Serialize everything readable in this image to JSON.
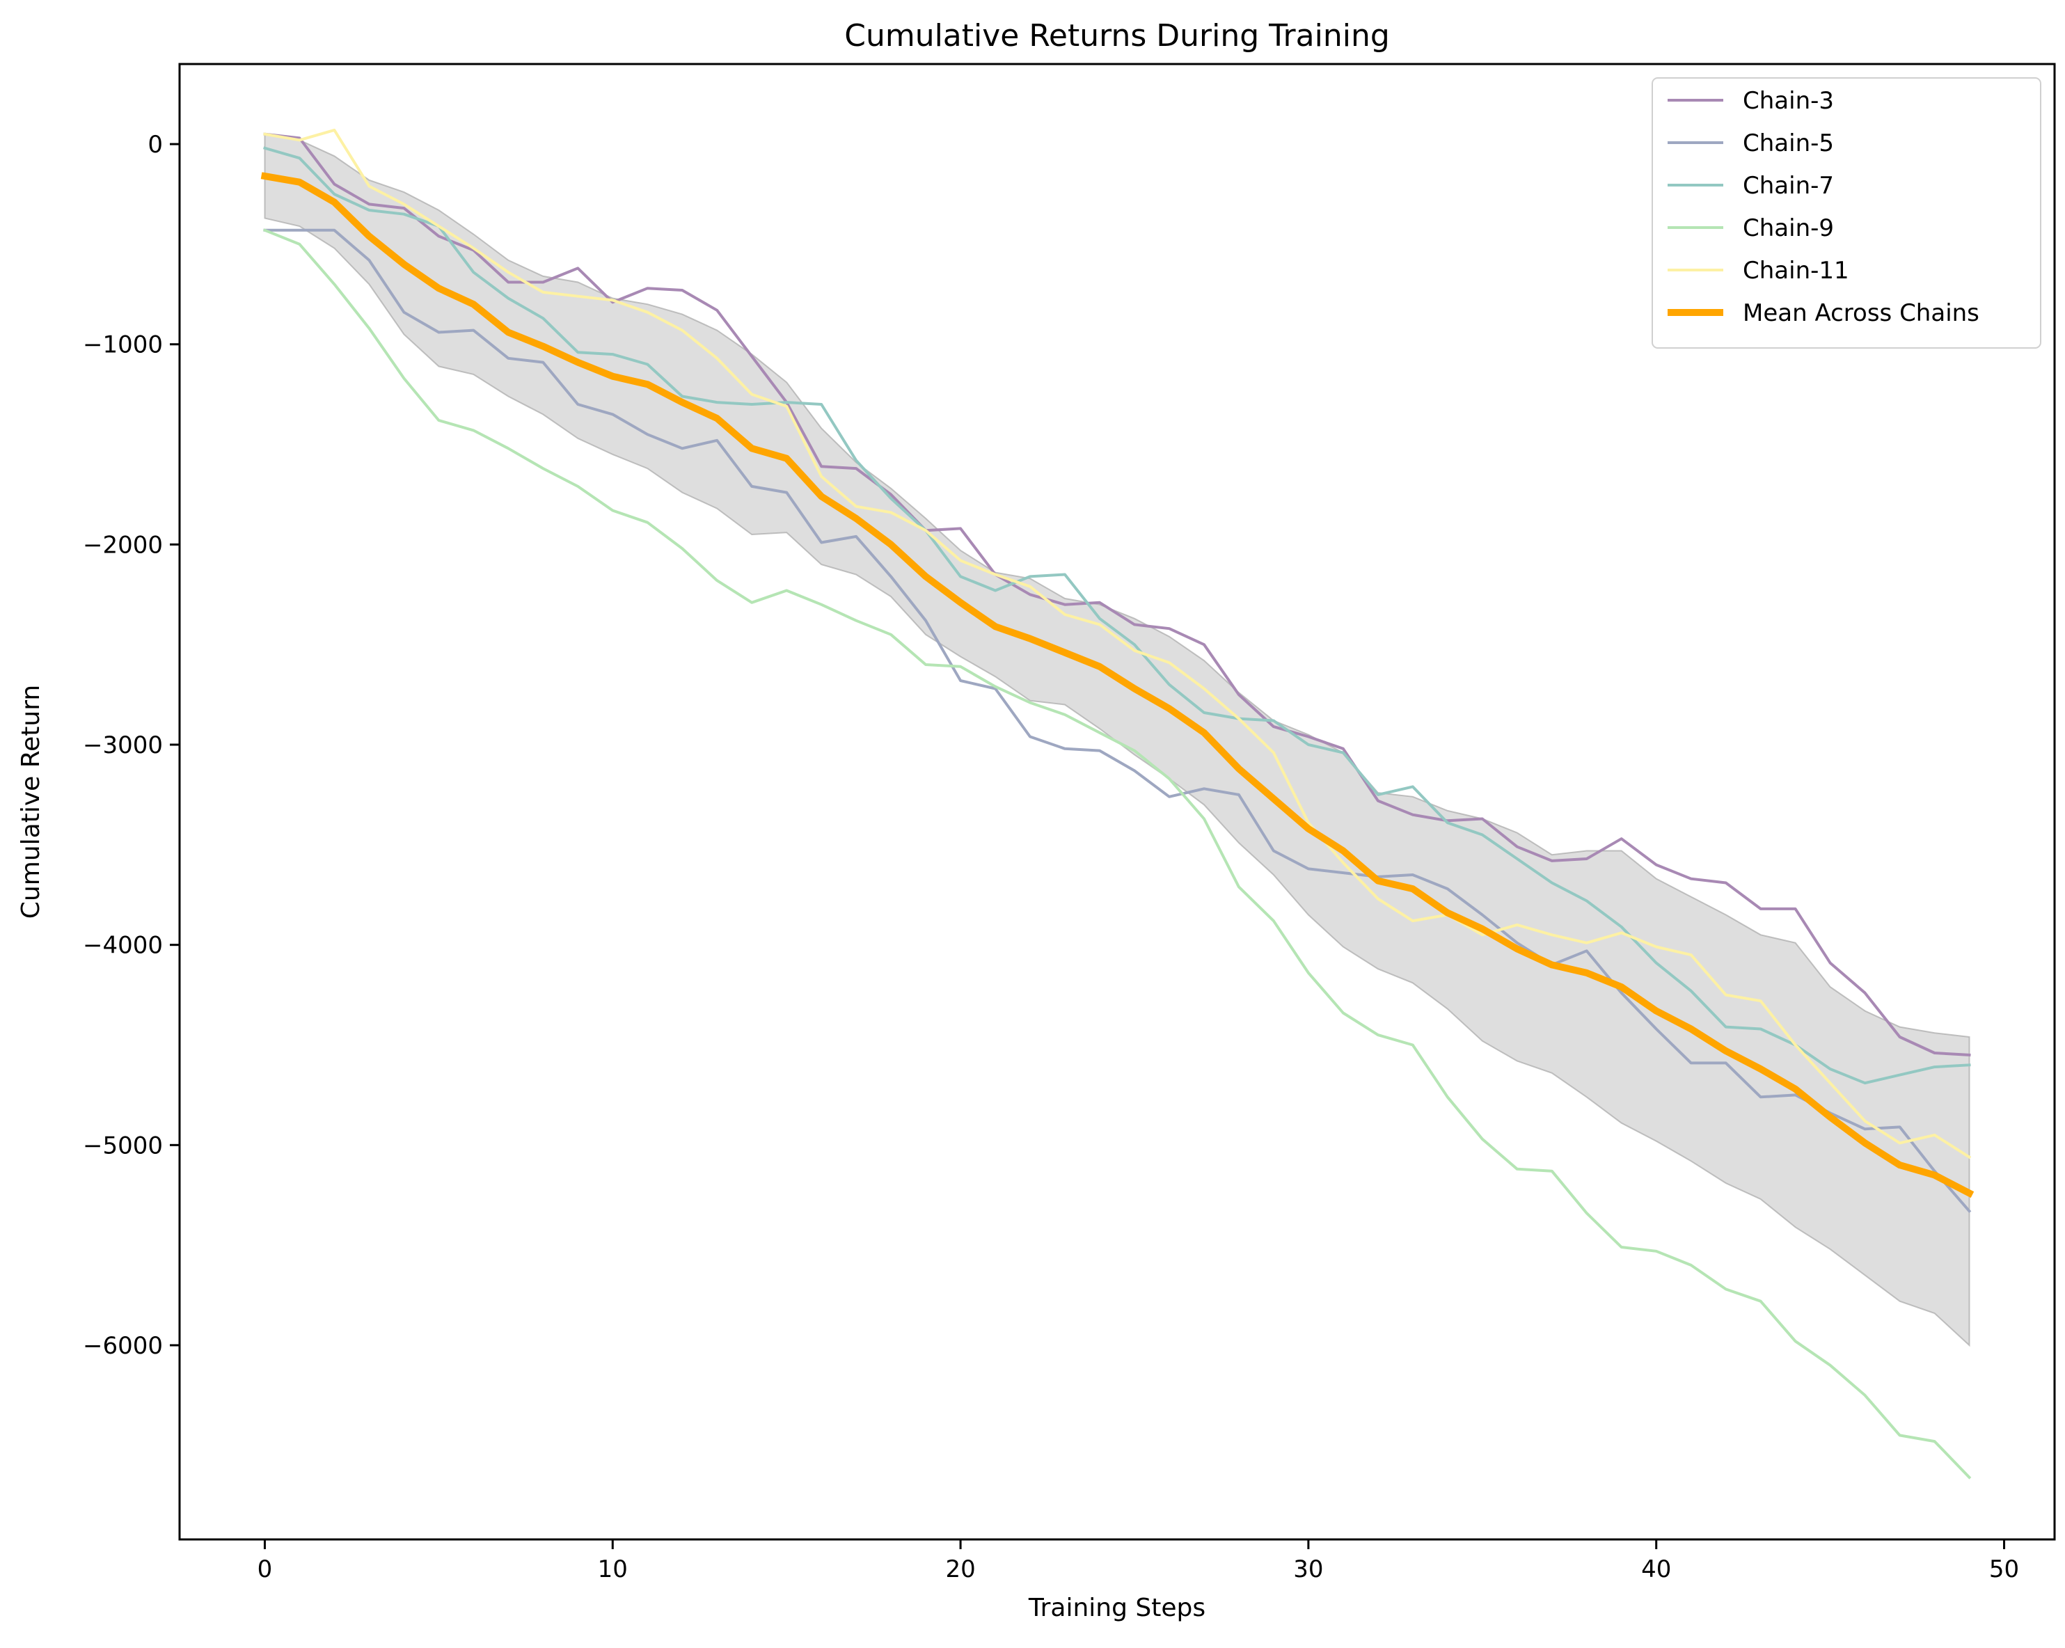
{
  "chart_data": {
    "type": "line",
    "title": "Cumulative Returns During Training",
    "xlabel": "Training Steps",
    "ylabel": "Cumulative Return",
    "xlim": [
      -2.45,
      51.45
    ],
    "ylim": [
      -6970,
      400
    ],
    "xticks": [
      0,
      10,
      20,
      30,
      40,
      50
    ],
    "yticks": [
      0,
      -1000,
      -2000,
      -3000,
      -4000,
      -5000,
      -6000
    ],
    "xtick_labels": [
      "0",
      "10",
      "20",
      "30",
      "40",
      "50"
    ],
    "ytick_labels": [
      "0",
      "−1000",
      "−2000",
      "−3000",
      "−4000",
      "−5000",
      "−6000"
    ],
    "grid": false,
    "legend_position": "top-right",
    "x": [
      0,
      1,
      2,
      3,
      4,
      5,
      6,
      7,
      8,
      9,
      10,
      11,
      12,
      13,
      14,
      15,
      16,
      17,
      18,
      19,
      20,
      21,
      22,
      23,
      24,
      25,
      26,
      27,
      28,
      29,
      30,
      31,
      32,
      33,
      34,
      35,
      36,
      37,
      38,
      39,
      40,
      41,
      42,
      43,
      44,
      45,
      46,
      47,
      48,
      49
    ],
    "series": [
      {
        "name": "Chain-3",
        "color": "#a889b4",
        "linewidth": 4,
        "values": [
          50,
          30,
          -200,
          -300,
          -320,
          -460,
          -530,
          -690,
          -690,
          -620,
          -790,
          -720,
          -730,
          -830,
          -1060,
          -1290,
          -1610,
          -1620,
          -1750,
          -1930,
          -1920,
          -2150,
          -2250,
          -2300,
          -2290,
          -2400,
          -2420,
          -2500,
          -2750,
          -2910,
          -2960,
          -3020,
          -3280,
          -3350,
          -3380,
          -3370,
          -3510,
          -3580,
          -3570,
          -3470,
          -3600,
          -3670,
          -3690,
          -3820,
          -3820,
          -4090,
          -4240,
          -4460,
          -4540,
          -4550
        ]
      },
      {
        "name": "Chain-5",
        "color": "#9ea7c1",
        "linewidth": 4,
        "values": [
          -430,
          -430,
          -430,
          -580,
          -840,
          -940,
          -930,
          -1070,
          -1090,
          -1300,
          -1350,
          -1450,
          -1520,
          -1480,
          -1710,
          -1740,
          -1990,
          -1960,
          -2160,
          -2380,
          -2680,
          -2720,
          -2960,
          -3020,
          -3030,
          -3130,
          -3260,
          -3220,
          -3250,
          -3530,
          -3620,
          -3640,
          -3660,
          -3650,
          -3720,
          -3850,
          -3990,
          -4100,
          -4030,
          -4240,
          -4420,
          -4590,
          -4590,
          -4760,
          -4750,
          -4840,
          -4920,
          -4910,
          -5130,
          -5330
        ]
      },
      {
        "name": "Chain-7",
        "color": "#93c8c2",
        "linewidth": 4,
        "values": [
          -20,
          -70,
          -250,
          -330,
          -350,
          -410,
          -640,
          -770,
          -870,
          -1040,
          -1050,
          -1100,
          -1260,
          -1290,
          -1300,
          -1290,
          -1300,
          -1580,
          -1770,
          -1930,
          -2160,
          -2230,
          -2160,
          -2150,
          -2370,
          -2500,
          -2700,
          -2840,
          -2870,
          -2880,
          -3000,
          -3040,
          -3250,
          -3210,
          -3390,
          -3450,
          -3570,
          -3690,
          -3780,
          -3910,
          -4090,
          -4230,
          -4410,
          -4420,
          -4500,
          -4620,
          -4690,
          -4650,
          -4610,
          -4600
        ]
      },
      {
        "name": "Chain-9",
        "color": "#b5e5b4",
        "linewidth": 4,
        "values": [
          -430,
          -500,
          -700,
          -920,
          -1170,
          -1380,
          -1430,
          -1520,
          -1620,
          -1710,
          -1830,
          -1890,
          -2020,
          -2180,
          -2290,
          -2230,
          -2300,
          -2380,
          -2450,
          -2600,
          -2610,
          -2710,
          -2790,
          -2850,
          -2940,
          -3030,
          -3170,
          -3370,
          -3710,
          -3880,
          -4140,
          -4340,
          -4450,
          -4500,
          -4760,
          -4970,
          -5120,
          -5130,
          -5340,
          -5510,
          -5530,
          -5600,
          -5720,
          -5780,
          -5980,
          -6100,
          -6250,
          -6450,
          -6480,
          -6660
        ]
      },
      {
        "name": "Chain-11",
        "color": "#fdf1a4",
        "linewidth": 4,
        "values": [
          50,
          20,
          70,
          -210,
          -300,
          -410,
          -520,
          -640,
          -740,
          -760,
          -780,
          -840,
          -930,
          -1070,
          -1250,
          -1310,
          -1660,
          -1810,
          -1840,
          -1930,
          -2080,
          -2150,
          -2210,
          -2350,
          -2400,
          -2530,
          -2590,
          -2720,
          -2870,
          -3040,
          -3390,
          -3590,
          -3770,
          -3880,
          -3850,
          -3950,
          -3900,
          -3950,
          -3990,
          -3940,
          -4010,
          -4050,
          -4250,
          -4280,
          -4500,
          -4690,
          -4880,
          -4990,
          -4950,
          -5060
        ]
      },
      {
        "name": "Mean Across Chains",
        "color": "#ffa500",
        "linewidth": 10,
        "values": [
          -160,
          -190,
          -290,
          -460,
          -600,
          -720,
          -800,
          -940,
          -1010,
          -1090,
          -1160,
          -1200,
          -1290,
          -1370,
          -1520,
          -1570,
          -1760,
          -1870,
          -2000,
          -2160,
          -2290,
          -2410,
          -2470,
          -2540,
          -2610,
          -2720,
          -2820,
          -2940,
          -3120,
          -3270,
          -3420,
          -3530,
          -3680,
          -3720,
          -3840,
          -3920,
          -4020,
          -4100,
          -4140,
          -4210,
          -4330,
          -4420,
          -4530,
          -4620,
          -4720,
          -4860,
          -4990,
          -5100,
          -5150,
          -5240
        ]
      }
    ],
    "band": {
      "color": "#c8c8c8",
      "opacity": 0.6,
      "upper": [
        50,
        20,
        -60,
        -180,
        -240,
        -330,
        -450,
        -580,
        -660,
        -690,
        -770,
        -800,
        -850,
        -930,
        -1050,
        -1190,
        -1420,
        -1590,
        -1720,
        -1870,
        -2030,
        -2140,
        -2170,
        -2270,
        -2300,
        -2370,
        -2460,
        -2580,
        -2740,
        -2880,
        -2950,
        -3040,
        -3240,
        -3260,
        -3330,
        -3370,
        -3440,
        -3550,
        -3530,
        -3530,
        -3670,
        -3760,
        -3850,
        -3950,
        -3990,
        -4210,
        -4330,
        -4410,
        -4440,
        -4460
      ]
    },
    "band_lower": [
      -370,
      -410,
      -520,
      -700,
      -950,
      -1110,
      -1150,
      -1260,
      -1350,
      -1470,
      -1550,
      -1620,
      -1740,
      -1820,
      -1950,
      -1940,
      -2100,
      -2150,
      -2260,
      -2450,
      -2560,
      -2660,
      -2780,
      -2800,
      -2920,
      -3050,
      -3170,
      -3300,
      -3490,
      -3650,
      -3850,
      -4010,
      -4120,
      -4190,
      -4320,
      -4480,
      -4580,
      -4640,
      -4760,
      -4890,
      -4980,
      -5080,
      -5190,
      -5270,
      -5410,
      -5520,
      -5650,
      -5780,
      -5840,
      -6000
    ]
  }
}
